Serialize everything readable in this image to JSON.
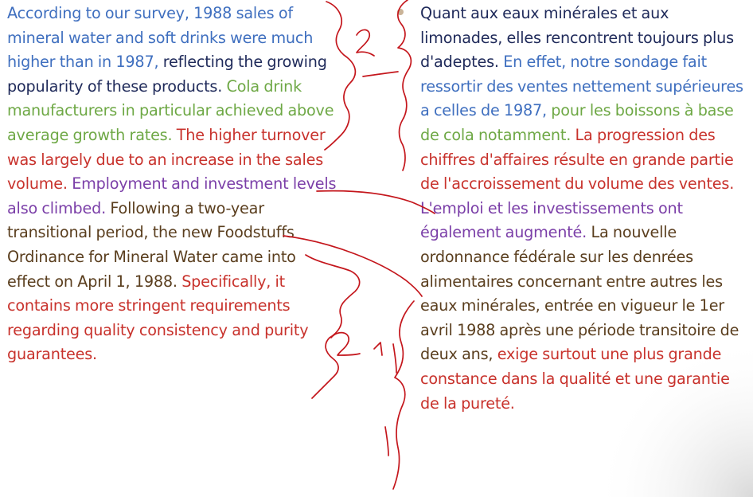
{
  "colors": {
    "blue": "#3f6fbf",
    "navy": "#1f2a5a",
    "green": "#6ea845",
    "red": "#c8322c",
    "purple": "#7b3fa8",
    "brown": "#5a3e1e",
    "pen": "#c4161c",
    "bullet": "#b89a74"
  },
  "english": {
    "segments": [
      {
        "text": "According to our survey, 1988 sales of mineral water and soft drinks were much higher than in 1987, ",
        "color": "#3f6fbf"
      },
      {
        "text": "reflecting the growing popularity of these products. ",
        "color": "#1f2a5a"
      },
      {
        "text": "Cola drink manufacturers in particular achieved above average growth rates. ",
        "color": "#6ea845"
      },
      {
        "text": "The higher turnover was largely due to an increase in the sales volume. ",
        "color": "#c8322c"
      },
      {
        "text": "Employment and investment levels also climbed. ",
        "color": "#7b3fa8"
      },
      {
        "text": "Following a two-year transitional period, the new Foodstuffs Ordinance for Mineral Water came into effect on April 1, 1988. ",
        "color": "#5a3e1e"
      },
      {
        "text": "Specifically, it contains more stringent requirements regarding quality consistency and purity guarantees.",
        "color": "#c8322c"
      }
    ]
  },
  "french": {
    "segments": [
      {
        "text": "Quant aux eaux minérales et aux limonades, elles rencontrent toujours plus d'adeptes. ",
        "color": "#1f2a5a"
      },
      {
        "text": "En effet, notre sondage fait ressortir des ventes nettement supérieures a celles de 1987, ",
        "color": "#3f6fbf"
      },
      {
        "text": "pour les boissons à base de cola notamment. ",
        "color": "#6ea845"
      },
      {
        "text": "La progression des chiffres d'affaires résulte en grande partie de l'accroissement du volume des ventes. ",
        "color": "#c8322c"
      },
      {
        "text": "L'emploi et les investissements ont également augmenté. ",
        "color": "#7b3fa8"
      },
      {
        "text": "La nouvelle ordonnance fédérale sur les denrées alimentaires concernant entre autres les eaux minérales, entrée en vigueur le 1er avril 1988 après une période transitoire de deux ans, ",
        "color": "#5a3e1e"
      },
      {
        "text": "exige surtout une plus grande constance dans la qualité et une garantie de la pureté.",
        "color": "#c8322c"
      }
    ]
  }
}
